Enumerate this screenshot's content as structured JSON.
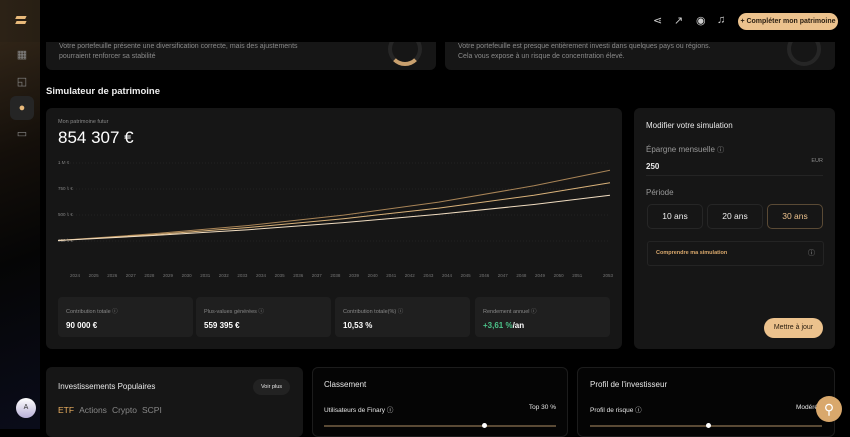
{
  "sidebar": {
    "items": [
      "grid-icon",
      "chart-icon",
      "compass-icon",
      "chat-icon"
    ],
    "avatar": "A"
  },
  "header": {
    "cta": "+ Compléter mon patrimoine",
    "icons": [
      "share-icon",
      "trend-icon",
      "eye-icon",
      "bell-icon"
    ]
  },
  "top_cards": [
    {
      "line1": "Votre portefeuille présente une diversification correcte, mais des ajustements",
      "line2": "pourraient renforcer sa stabilité"
    },
    {
      "line1": "Votre portefeuille est presque entièrement investi dans quelques pays ou régions.",
      "line2": "Cela vous expose à un risque de concentration élevé."
    }
  ],
  "simulator": {
    "title": "Simulateur de patrimoine",
    "future_label": "Mon patrimoine futur",
    "future_value": "854 307 €",
    "stats": [
      {
        "label": "Contribution totale ⓘ",
        "value": "90 000 €"
      },
      {
        "label": "Plus-values générées ⓘ",
        "value": "559 395 €"
      },
      {
        "label": "Contribution totale(%) ⓘ",
        "value": "10,53 %"
      },
      {
        "label": "Rendement annuel ⓘ",
        "value": "+3,61 %",
        "suffix": "/an"
      }
    ]
  },
  "chart_data": {
    "type": "line",
    "yticks": [
      "1 M €",
      "750 k €",
      "500 k €",
      "250 k €"
    ],
    "ylim": [
      0,
      1000000
    ],
    "xticks": [
      "2024",
      "2025",
      "2026",
      "2027",
      "2028",
      "2029",
      "2030",
      "2031",
      "2032",
      "2033",
      "2034",
      "2035",
      "2036",
      "2037",
      "2038",
      "2039",
      "2040",
      "2041",
      "2042",
      "2043",
      "2044",
      "2045",
      "2046",
      "2047",
      "2048",
      "2049",
      "2050",
      "2051",
      "2053"
    ],
    "x": [
      2024,
      2029,
      2034,
      2039,
      2044,
      2049,
      2053
    ],
    "series": [
      {
        "values": [
          255000,
          319000,
          399000,
          499000,
          624000,
          781000,
          930000
        ],
        "color": "#a88457"
      },
      {
        "values": [
          255000,
          311000,
          380000,
          464000,
          566000,
          690000,
          810000
        ],
        "color": "#d9b27a"
      },
      {
        "values": [
          255000,
          303000,
          359000,
          427000,
          507000,
          601000,
          690000
        ],
        "color": "#f0dcc0"
      }
    ]
  },
  "panel": {
    "title": "Modifier votre simulation",
    "savings_label": "Épargne mensuelle",
    "savings_value": "250",
    "currency": "EUR",
    "period_label": "Période",
    "periods": [
      "10 ans",
      "20 ans",
      "30 ans"
    ],
    "selected": "30 ans",
    "understand": "Comprendre ma simulation",
    "update": "Mettre à jour"
  },
  "popular": {
    "title": "Investissements Populaires",
    "more": "Voir plus",
    "tabs": [
      "ETF",
      "Actions",
      "Crypto",
      "SCPI"
    ]
  },
  "ranking": {
    "title": "Classement",
    "label": "Utilisateurs de Finary ⓘ",
    "value": "Top 30 %",
    "slider": 0.68
  },
  "profile": {
    "title": "Profil de l'investisseur",
    "label": "Profil de risque ⓘ",
    "value": "Modéré",
    "slider": 0.5
  }
}
